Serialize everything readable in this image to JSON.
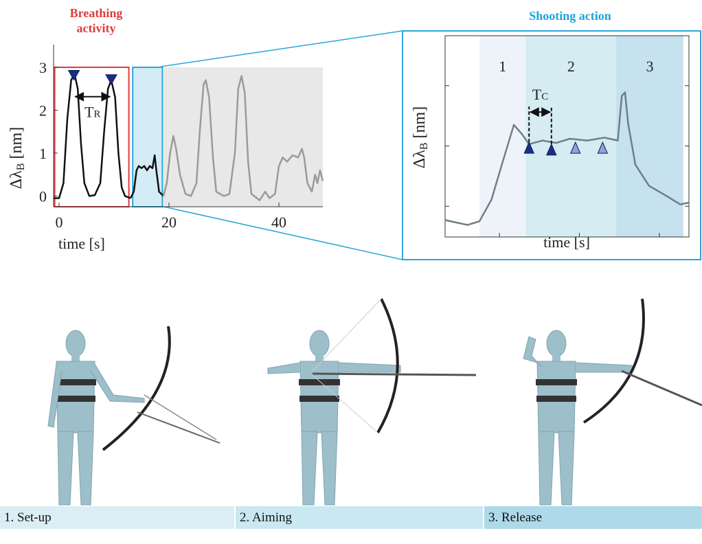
{
  "chart_data": [
    {
      "type": "line",
      "title": "Breathing activity",
      "title_color": "#e0393e",
      "xlabel": "time [s]",
      "ylabel": "Δλ",
      "ylabel_sub": "B",
      "ylabel_unit": "[nm]",
      "xlim": [
        -1,
        48
      ],
      "ylim": [
        -0.25,
        3.4
      ],
      "xticks": [
        0,
        20,
        40
      ],
      "yticks": [
        0,
        1,
        2,
        3
      ],
      "tick_labels": true,
      "frame": "axes",
      "regions": [
        {
          "x": [
            19,
            48
          ],
          "y": [
            -0.25,
            3.0
          ],
          "fill": "#e8e8e8"
        },
        {
          "x": [
            -0.8,
            12.7
          ],
          "y": [
            -0.25,
            3.0
          ],
          "stroke": "#e0393e"
        },
        {
          "x": [
            13.4,
            18.8
          ],
          "y": [
            -0.25,
            3.0
          ],
          "fill": "#d4ecf6",
          "stroke": "#2aa6d9"
        }
      ],
      "series": [
        {
          "color": "#111111",
          "x": [
            -1,
            0,
            0.8,
            1.5,
            2.2,
            2.8,
            3.4,
            4,
            4.6,
            5.5,
            6.5,
            7.5,
            8.2,
            8.9,
            9.5,
            10.2,
            10.8,
            11.4,
            12,
            13
          ],
          "values": [
            -0.05,
            -0.05,
            0.3,
            1.8,
            2.7,
            2.85,
            2.5,
            1.2,
            0.3,
            0.0,
            0.02,
            0.3,
            1.5,
            2.5,
            2.7,
            2.3,
            1.0,
            0.2,
            0.0,
            -0.05
          ]
        },
        {
          "color": "#111111",
          "x": [
            13,
            13.6,
            14.1,
            14.5,
            15,
            15.5,
            16,
            16.5,
            17,
            17.4,
            17.7,
            18.2,
            19
          ],
          "values": [
            -0.05,
            0.1,
            0.6,
            0.7,
            0.65,
            0.7,
            0.6,
            0.7,
            0.65,
            0.95,
            0.6,
            0.1,
            0.0
          ]
        },
        {
          "color": "#9a9a9a",
          "x": [
            19,
            19.6,
            20.2,
            20.8,
            21.3,
            22,
            23,
            24,
            25,
            25.6,
            26.3,
            26.7,
            27.3,
            28,
            28.6,
            30,
            31,
            32,
            32.6,
            33.2,
            33.8,
            34.4,
            35,
            36.5,
            37.5,
            38.3,
            39.3,
            40,
            40.7,
            41.5,
            42.5,
            43.5,
            44.2,
            44.6,
            45.2,
            46,
            46.6,
            47,
            47.5,
            48
          ],
          "values": [
            0.0,
            0.3,
            1.0,
            1.4,
            1.1,
            0.5,
            0.05,
            0.0,
            0.3,
            1.5,
            2.6,
            2.7,
            2.3,
            0.9,
            0.1,
            0.0,
            0.05,
            1.0,
            2.5,
            2.8,
            2.4,
            0.8,
            0.05,
            -0.1,
            0.1,
            -0.05,
            0.05,
            0.7,
            0.9,
            0.8,
            0.95,
            0.9,
            1.1,
            0.9,
            0.3,
            0.1,
            0.5,
            0.3,
            0.6,
            0.35
          ]
        }
      ],
      "markers": {
        "shape": "down",
        "x": [
          2.7,
          9.5
        ],
        "values": [
          2.8,
          2.7
        ],
        "colors": [
          "#1a2f8a",
          "#1a2f8a"
        ]
      },
      "annotation": {
        "text": "T",
        "sub": "R",
        "placement": "below"
      }
    },
    {
      "type": "line",
      "title": "Shooting action",
      "title_color": "#1aa3dc",
      "xlabel": "time [s]",
      "ylabel": "Δλ",
      "ylabel_sub": "B",
      "ylabel_unit": "[nm]",
      "xlim": [
        0.32,
        3.37
      ],
      "ylim": [
        -0.51,
        2.83
      ],
      "xticks": [
        1,
        2,
        3
      ],
      "yticks": [
        0,
        1,
        2
      ],
      "tick_labels": false,
      "frame": "box",
      "regions": [
        {
          "x": [
            0.75,
            1.33
          ],
          "fill": "#eef3fa",
          "label": "1"
        },
        {
          "x": [
            1.33,
            2.46
          ],
          "fill": "#d4ecf2",
          "label": "2"
        },
        {
          "x": [
            2.46,
            3.3
          ],
          "fill": "#c5e2ee",
          "label": "3"
        }
      ],
      "series": [
        {
          "color": "#6e7f85",
          "x": [
            0.32,
            0.6,
            0.75,
            0.9,
            1.03,
            1.18,
            1.28,
            1.37,
            1.54,
            1.71,
            1.88,
            2.1,
            2.31,
            2.48,
            2.53,
            2.57,
            2.61,
            2.7,
            2.87,
            3.09,
            3.26,
            3.37
          ],
          "values": [
            -0.23,
            -0.31,
            -0.25,
            0.11,
            0.69,
            1.35,
            1.2,
            1.03,
            1.09,
            1.05,
            1.12,
            1.09,
            1.14,
            1.09,
            1.83,
            1.89,
            1.37,
            0.69,
            0.34,
            0.17,
            0.03,
            0.06
          ]
        }
      ],
      "markers": {
        "shape": "up",
        "x": [
          1.37,
          1.65,
          1.95,
          2.29
        ],
        "values": [
          0.97,
          0.94,
          0.97,
          0.97
        ],
        "colors": [
          "#1a2f8a",
          "#1a2f8a",
          "#8fa3d6",
          "#8fa3d6"
        ]
      },
      "annotation": {
        "text": "T",
        "sub": "C",
        "placement": "above"
      }
    }
  ],
  "phases": [
    "1. Set-up",
    "2. Aiming",
    "3. Release"
  ],
  "phase_colors": [
    "#dbeef5",
    "#c9e8f1",
    "#aed9e8"
  ]
}
